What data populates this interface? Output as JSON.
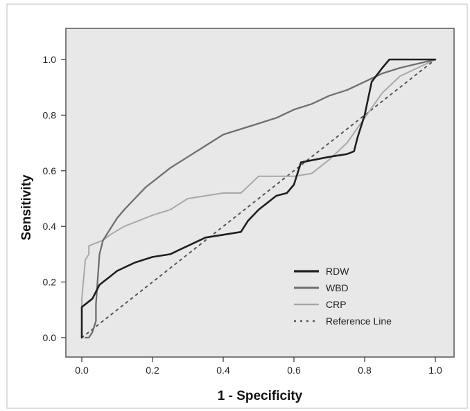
{
  "chart_data": {
    "type": "line",
    "xlabel": "1 - Specificity",
    "ylabel": "Sensitivity",
    "xlim": [
      0.0,
      1.0
    ],
    "ylim": [
      0.0,
      1.0
    ],
    "x_ticks": [
      "0.0",
      "0.2",
      "0.4",
      "0.6",
      "0.8",
      "1.0"
    ],
    "y_ticks": [
      "0.0",
      "0.2",
      "0.4",
      "0.6",
      "0.8",
      "1.0"
    ],
    "grid": false,
    "legend_position": "bottom-right",
    "colors": {
      "plot_background": "#e8e8e8",
      "RDW": "#1f1f1f",
      "WBD": "#6e6e6e",
      "CRP": "#a8a8a8",
      "Reference Line": "#555555"
    },
    "series": [
      {
        "name": "RDW",
        "x": [
          0.0,
          0.0,
          0.01,
          0.02,
          0.03,
          0.05,
          0.06,
          0.08,
          0.1,
          0.15,
          0.2,
          0.25,
          0.3,
          0.35,
          0.4,
          0.45,
          0.47,
          0.5,
          0.55,
          0.58,
          0.6,
          0.62,
          0.7,
          0.75,
          0.77,
          0.78,
          0.8,
          0.82,
          0.85,
          0.87,
          1.0
        ],
        "y": [
          0.0,
          0.11,
          0.12,
          0.13,
          0.14,
          0.19,
          0.2,
          0.22,
          0.24,
          0.27,
          0.29,
          0.3,
          0.33,
          0.36,
          0.37,
          0.38,
          0.42,
          0.46,
          0.51,
          0.52,
          0.55,
          0.63,
          0.65,
          0.66,
          0.67,
          0.72,
          0.8,
          0.92,
          0.97,
          1.0,
          1.0
        ]
      },
      {
        "name": "WBD",
        "x": [
          0.01,
          0.02,
          0.03,
          0.04,
          0.04,
          0.05,
          0.06,
          0.08,
          0.1,
          0.12,
          0.15,
          0.18,
          0.2,
          0.25,
          0.3,
          0.35,
          0.4,
          0.45,
          0.5,
          0.55,
          0.6,
          0.65,
          0.7,
          0.75,
          0.8,
          0.85,
          0.9,
          1.0
        ],
        "y": [
          0.0,
          0.0,
          0.02,
          0.06,
          0.12,
          0.3,
          0.35,
          0.39,
          0.43,
          0.46,
          0.5,
          0.54,
          0.56,
          0.61,
          0.65,
          0.69,
          0.73,
          0.75,
          0.77,
          0.79,
          0.82,
          0.84,
          0.87,
          0.89,
          0.92,
          0.95,
          0.97,
          1.0
        ]
      },
      {
        "name": "CRP",
        "x": [
          0.0,
          0.0,
          0.01,
          0.02,
          0.02,
          0.04,
          0.06,
          0.08,
          0.12,
          0.16,
          0.2,
          0.25,
          0.3,
          0.35,
          0.4,
          0.45,
          0.5,
          0.55,
          0.6,
          0.65,
          0.7,
          0.75,
          0.8,
          0.85,
          0.9,
          1.0
        ],
        "y": [
          0.0,
          0.14,
          0.28,
          0.3,
          0.33,
          0.34,
          0.35,
          0.37,
          0.4,
          0.42,
          0.44,
          0.46,
          0.5,
          0.51,
          0.52,
          0.52,
          0.58,
          0.58,
          0.58,
          0.59,
          0.64,
          0.7,
          0.79,
          0.88,
          0.94,
          1.0
        ]
      },
      {
        "name": "Reference Line",
        "x": [
          0.0,
          1.0
        ],
        "y": [
          0.0,
          1.0
        ]
      }
    ]
  }
}
